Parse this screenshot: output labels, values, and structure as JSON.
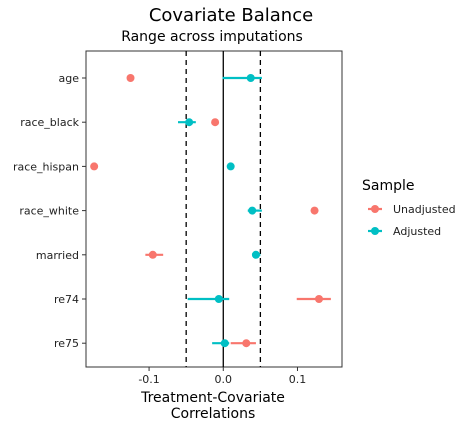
{
  "chart_data": {
    "type": "scatter",
    "title": "Covariate Balance",
    "subtitle": "Range across imputations",
    "xlabel": [
      "Treatment-Covariate",
      "Correlations"
    ],
    "ylabel": "",
    "xlim": [
      -0.185,
      0.16
    ],
    "x_ticks": [
      -0.1,
      0.0,
      0.1
    ],
    "x_tick_labels": [
      "-0.1",
      "0.0",
      "0.1"
    ],
    "threshold_lines": [
      -0.05,
      0.05
    ],
    "zero_line": 0,
    "categories": [
      "age",
      "race_black",
      "race_hispan",
      "race_white",
      "married",
      "re74",
      "re75"
    ],
    "legend": {
      "title": "Sample",
      "position": "right"
    },
    "series": [
      {
        "name": "Unadjusted",
        "color": "#F8766D",
        "points": [
          {
            "y": "age",
            "x": -0.125,
            "lo": -0.125,
            "hi": -0.125
          },
          {
            "y": "race_black",
            "x": -0.011,
            "lo": -0.011,
            "hi": -0.011
          },
          {
            "y": "race_hispan",
            "x": -0.174,
            "lo": -0.174,
            "hi": -0.174
          },
          {
            "y": "race_white",
            "x": 0.123,
            "lo": 0.123,
            "hi": 0.123
          },
          {
            "y": "married",
            "x": -0.095,
            "lo": -0.105,
            "hi": -0.081
          },
          {
            "y": "re74",
            "x": 0.129,
            "lo": 0.099,
            "hi": 0.145
          },
          {
            "y": "re75",
            "x": 0.031,
            "lo": 0.01,
            "hi": 0.044
          }
        ]
      },
      {
        "name": "Adjusted",
        "color": "#00BFC4",
        "points": [
          {
            "y": "age",
            "x": 0.037,
            "lo": -0.001,
            "hi": 0.052
          },
          {
            "y": "race_black",
            "x": -0.046,
            "lo": -0.061,
            "hi": -0.037
          },
          {
            "y": "race_hispan",
            "x": 0.01,
            "lo": 0.01,
            "hi": 0.01
          },
          {
            "y": "race_white",
            "x": 0.039,
            "lo": 0.033,
            "hi": 0.052
          },
          {
            "y": "married",
            "x": 0.044,
            "lo": 0.039,
            "hi": 0.05
          },
          {
            "y": "re74",
            "x": -0.006,
            "lo": -0.048,
            "hi": 0.008
          },
          {
            "y": "re75",
            "x": 0.002,
            "lo": -0.015,
            "hi": 0.008
          }
        ]
      }
    ]
  }
}
